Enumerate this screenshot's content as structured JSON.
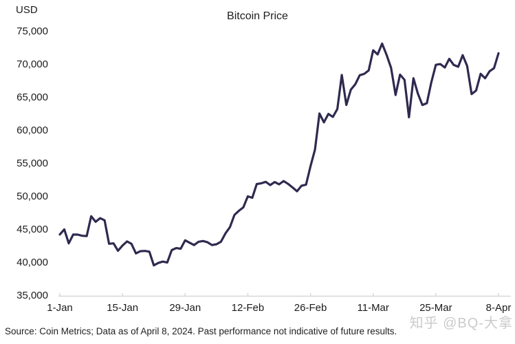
{
  "chart_data": {
    "type": "line",
    "title": "Bitcoin Price",
    "ylabel": "USD",
    "xlabel": "",
    "ylim": [
      35000,
      75000
    ],
    "grid": false,
    "legend": "none",
    "line_color": "#2e2a4f",
    "axis_color": "#d8d8d8",
    "y_ticks": [
      {
        "label": "75,000",
        "value": 75000
      },
      {
        "label": "70,000",
        "value": 70000
      },
      {
        "label": "65,000",
        "value": 65000
      },
      {
        "label": "60,000",
        "value": 60000
      },
      {
        "label": "55,000",
        "value": 55000
      },
      {
        "label": "50,000",
        "value": 50000
      },
      {
        "label": "45,000",
        "value": 45000
      },
      {
        "label": "40,000",
        "value": 40000
      },
      {
        "label": "35,000",
        "value": 35000
      }
    ],
    "x_ticks": [
      "1-Jan",
      "15-Jan",
      "29-Jan",
      "12-Feb",
      "26-Feb",
      "11-Mar",
      "25-Mar",
      "8-Apr"
    ],
    "series": [
      {
        "name": "Bitcoin Price (USD)",
        "dates": [
          "1-Jan",
          "2-Jan",
          "3-Jan",
          "4-Jan",
          "5-Jan",
          "6-Jan",
          "7-Jan",
          "8-Jan",
          "9-Jan",
          "10-Jan",
          "11-Jan",
          "12-Jan",
          "13-Jan",
          "14-Jan",
          "15-Jan",
          "16-Jan",
          "17-Jan",
          "18-Jan",
          "19-Jan",
          "20-Jan",
          "21-Jan",
          "22-Jan",
          "23-Jan",
          "24-Jan",
          "25-Jan",
          "26-Jan",
          "27-Jan",
          "28-Jan",
          "29-Jan",
          "30-Jan",
          "31-Jan",
          "1-Feb",
          "2-Feb",
          "3-Feb",
          "4-Feb",
          "5-Feb",
          "6-Feb",
          "7-Feb",
          "8-Feb",
          "9-Feb",
          "10-Feb",
          "11-Feb",
          "12-Feb",
          "13-Feb",
          "14-Feb",
          "15-Feb",
          "16-Feb",
          "17-Feb",
          "18-Feb",
          "19-Feb",
          "20-Feb",
          "21-Feb",
          "22-Feb",
          "23-Feb",
          "24-Feb",
          "25-Feb",
          "26-Feb",
          "27-Feb",
          "28-Feb",
          "29-Feb",
          "1-Mar",
          "2-Mar",
          "3-Mar",
          "4-Mar",
          "5-Mar",
          "6-Mar",
          "7-Mar",
          "8-Mar",
          "9-Mar",
          "10-Mar",
          "11-Mar",
          "12-Mar",
          "13-Mar",
          "14-Mar",
          "15-Mar",
          "16-Mar",
          "17-Mar",
          "18-Mar",
          "19-Mar",
          "20-Mar",
          "21-Mar",
          "22-Mar",
          "23-Mar",
          "24-Mar",
          "25-Mar",
          "26-Mar",
          "27-Mar",
          "28-Mar",
          "29-Mar",
          "30-Mar",
          "31-Mar",
          "1-Apr",
          "2-Apr",
          "3-Apr",
          "4-Apr",
          "5-Apr",
          "6-Apr",
          "7-Apr",
          "8-Apr"
        ],
        "values": [
          44187,
          44957,
          42848,
          44179,
          44162,
          43989,
          43943,
          46951,
          46106,
          46653,
          46338,
          42782,
          42847,
          41716,
          42511,
          43137,
          42776,
          41327,
          41659,
          41696,
          41580,
          39507,
          39878,
          40084,
          39936,
          41823,
          42120,
          42031,
          43302,
          42941,
          42580,
          43082,
          43194,
          43011,
          42582,
          42708,
          43098,
          44349,
          45288,
          47132,
          47771,
          48294,
          49958,
          49742,
          51826,
          51938,
          52161,
          51663,
          52122,
          51779,
          52284,
          51839,
          51304,
          50731,
          51571,
          51733,
          54522,
          57037,
          62504,
          61168,
          62440,
          61987,
          63169,
          68330,
          63801,
          66106,
          66925,
          68300,
          68498,
          69020,
          72078,
          71452,
          73083,
          71388,
          69403,
          65315,
          68390,
          67609,
          61937,
          67840,
          65501,
          63796,
          64062,
          67234,
          69880,
          69988,
          69469,
          70780,
          69850,
          69582,
          71333,
          69702,
          65446,
          65980,
          68508,
          67837,
          68896,
          69360,
          71620
        ]
      }
    ]
  },
  "footer": {
    "source_note": "Source: Coin Metrics; Data as of April 8, 2024. Past performance not indicative of future results."
  },
  "watermark": "知乎 @BQ-大拿"
}
